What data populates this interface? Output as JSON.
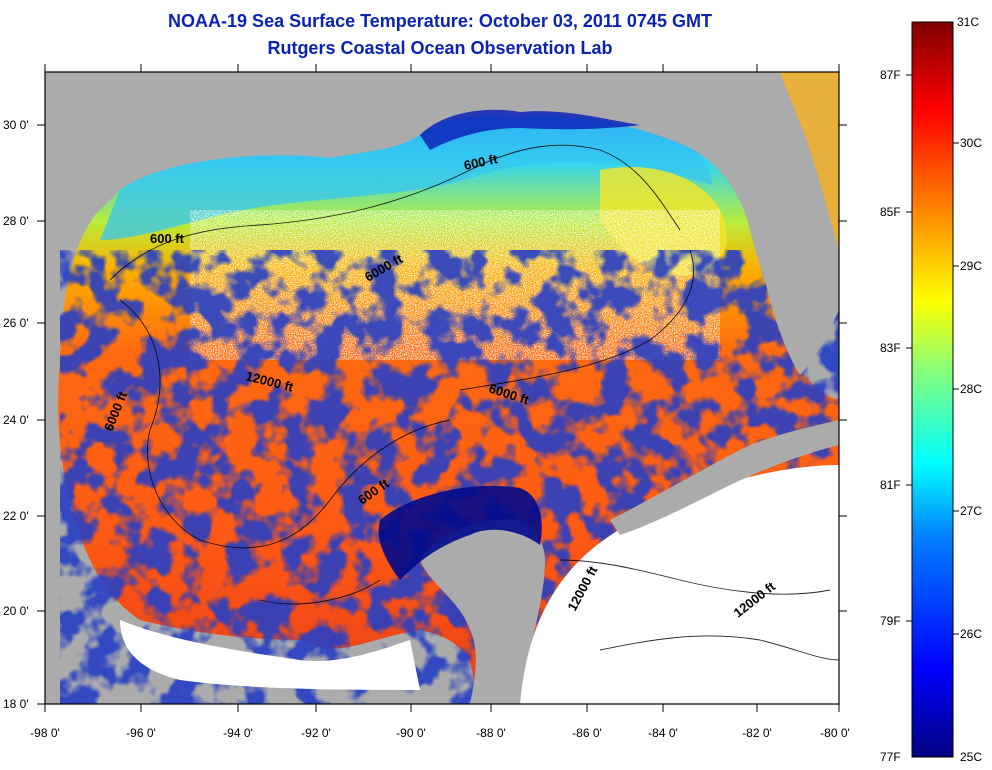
{
  "title": "NOAA-19 Sea Surface Temperature:  October 03, 2011 0745 GMT",
  "subtitle": "Rutgers Coastal Ocean Observation Lab",
  "map": {
    "lon_labels": [
      "-98 0'",
      "-96 0'",
      "-94 0'",
      "-92 0'",
      "-90 0'",
      "-88 0'",
      "-86 0'",
      "-84 0'",
      "-82 0'",
      "-80 0'"
    ],
    "lat_labels": [
      "30 0'",
      "28 0'",
      "26 0'",
      "24 0'",
      "22 0'",
      "20 0'",
      "18 0'"
    ],
    "contours": [
      "600 ft",
      "600 ft",
      "6000 ft",
      "6000 ft",
      "12000 ft",
      "6000 ft",
      "600 ft",
      "12000 ft",
      "12000 ft"
    ],
    "colors": {
      "land": "#ababab",
      "ocean_cold": "#000a8c",
      "ocean_warm": "#ff5a14",
      "no_data": "#ffffff"
    }
  },
  "colorbar": {
    "celsius": [
      "31C",
      "30C",
      "29C",
      "28C",
      "27C",
      "26C",
      "25C"
    ],
    "fahrenheit": [
      "87F",
      "85F",
      "83F",
      "81F",
      "79F",
      "77F"
    ],
    "range_c": [
      25,
      31
    ],
    "colormap": [
      "#000080",
      "#0000ff",
      "#0080ff",
      "#00ffff",
      "#80ff80",
      "#ffff00",
      "#ff8000",
      "#ff0000",
      "#800000"
    ]
  }
}
